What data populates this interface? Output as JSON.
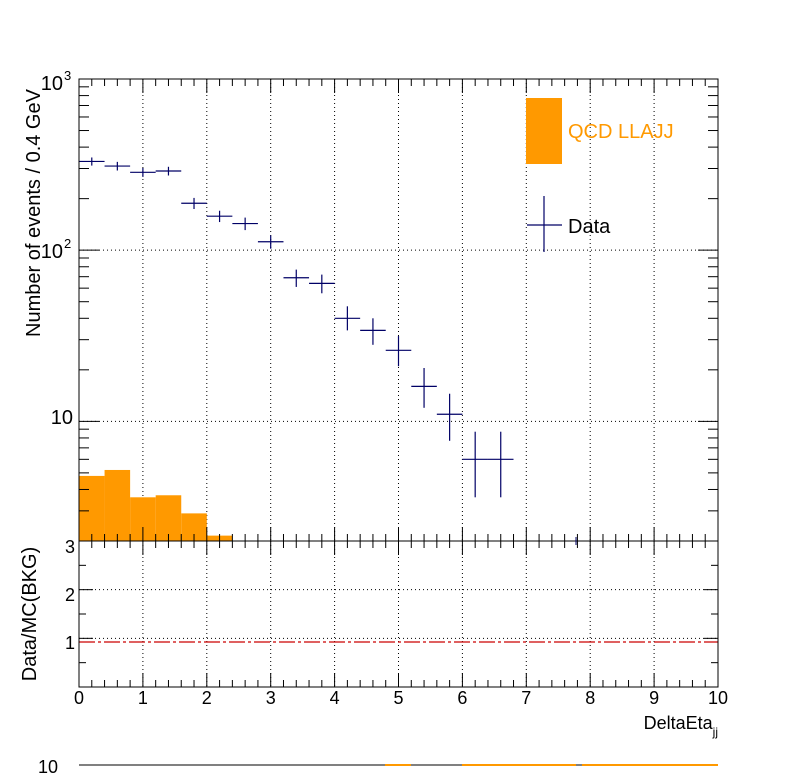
{
  "chart_data": [
    {
      "type": "bar",
      "panel": "main",
      "ylabel": "Number of events / 0.4 GeV",
      "yscale": "log",
      "ylim": [
        2,
        1000
      ],
      "xlim": [
        0,
        10
      ],
      "grid": true,
      "y_tick_labels": [
        "10",
        "10",
        "10"
      ],
      "y_tick_exponents": [
        "",
        "2",
        "3"
      ],
      "legend_position": "top-right",
      "legend": {
        "qcd_label": "QCD LLAJJ",
        "data_label": "Data"
      },
      "colors": {
        "qcd": "#ff9900",
        "data": "#000066",
        "ratio_line": "#cc0000"
      },
      "series": [
        {
          "name": "QCD LLAJJ",
          "kind": "histogram",
          "bin_edges": [
            0,
            0.4,
            0.8,
            1.2,
            1.6,
            2.0,
            2.4
          ],
          "values": [
            4.8,
            5.2,
            3.6,
            3.7,
            2.9,
            2.15
          ]
        },
        {
          "name": "Data",
          "kind": "points",
          "x": [
            0.2,
            0.6,
            1.0,
            1.4,
            1.8,
            2.2,
            2.6,
            3.0,
            3.4,
            3.8,
            4.2,
            4.6,
            5.0,
            5.4,
            5.8,
            6.2,
            6.6,
            7.8
          ],
          "y": [
            330,
            310,
            285,
            290,
            188,
            158,
            143,
            112,
            69,
            64,
            40,
            34,
            26,
            16,
            11,
            6,
            6,
            2
          ],
          "y_err_low": [
            18,
            18,
            17,
            17,
            14,
            12,
            12,
            10,
            8,
            8,
            6,
            6,
            5,
            4,
            3.3,
            2.4,
            2.4,
            0
          ],
          "y_err_high": [
            18,
            18,
            17,
            17,
            14,
            12,
            12,
            10,
            8,
            8,
            7,
            6,
            5.5,
            4.5,
            3.5,
            2.7,
            2.7,
            0.1
          ],
          "x_err": [
            0.2,
            0.2,
            0.2,
            0.2,
            0.2,
            0.2,
            0.2,
            0.2,
            0.2,
            0.2,
            0.2,
            0.2,
            0.2,
            0.2,
            0.2,
            0.2,
            0.2,
            0
          ]
        }
      ]
    },
    {
      "type": "line",
      "panel": "ratio",
      "xlabel": "DeltaEta",
      "xlabel_subscript": "jj",
      "ylabel": "Data/MC(BKG)",
      "xlim": [
        0,
        10
      ],
      "ylim": [
        0,
        3
      ],
      "grid": true,
      "x_tick_labels": [
        "0",
        "1",
        "2",
        "3",
        "4",
        "5",
        "6",
        "7",
        "8",
        "9",
        "10"
      ],
      "y_tick_labels": [
        "1",
        "2",
        "3"
      ],
      "reference_line": 1
    }
  ]
}
